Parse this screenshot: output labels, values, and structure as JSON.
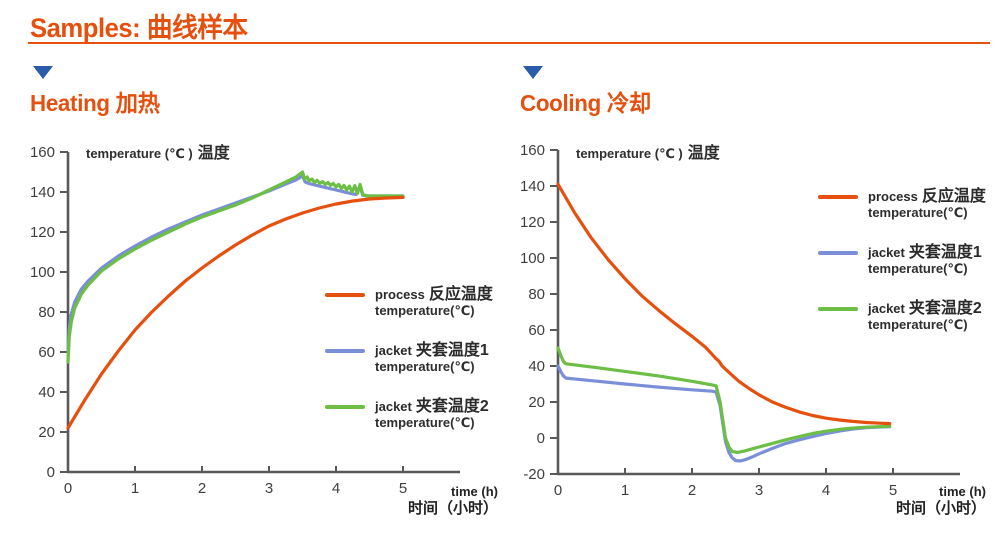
{
  "page": {
    "title": "Samples: 曲线样本",
    "accent_color": "#E5500F",
    "triangle_color": "#2A5CAA",
    "axis_color": "#595959",
    "tick_label_color": "#3F3F3F"
  },
  "sections": [
    {
      "heading": "Heating 加热"
    },
    {
      "heading": "Cooling 冷却"
    }
  ],
  "chart_data": [
    {
      "type": "line",
      "title": "Heating 加热",
      "ylabel_en": "temperature (℃ )",
      "ylabel_zh": "温度",
      "xlabel_en": "time (h)",
      "xlabel_zh": "时间（小时）",
      "xlim": [
        0,
        5.9
      ],
      "ylim": [
        0,
        160
      ],
      "xticks": [
        0,
        1,
        2,
        3,
        4,
        5
      ],
      "yticks": [
        0,
        20,
        40,
        60,
        80,
        100,
        120,
        140,
        160
      ],
      "grid": false,
      "legend_position": "right-middle",
      "series": [
        {
          "name_en": "process",
          "name_zh": "反应温度",
          "sub": "temperature(℃)",
          "color": "#E5500F",
          "points": [
            [
              0,
              22
            ],
            [
              0.25,
              36
            ],
            [
              0.5,
              49
            ],
            [
              0.75,
              60.5
            ],
            [
              1,
              71
            ],
            [
              1.25,
              80
            ],
            [
              1.5,
              88
            ],
            [
              1.75,
              95.5
            ],
            [
              2,
              102
            ],
            [
              2.25,
              108
            ],
            [
              2.5,
              113.5
            ],
            [
              2.75,
              118.5
            ],
            [
              3,
              123
            ],
            [
              3.25,
              126.5
            ],
            [
              3.5,
              129.5
            ],
            [
              3.75,
              132
            ],
            [
              4,
              134
            ],
            [
              4.25,
              135.5
            ],
            [
              4.5,
              136.5
            ],
            [
              4.75,
              137
            ],
            [
              5,
              137.3
            ]
          ]
        },
        {
          "name_en": "jacket",
          "name_zh": "夹套温度1",
          "sub": "temperature(℃)",
          "color": "#7B8FD9",
          "points": [
            [
              0,
              60
            ],
            [
              0.02,
              72
            ],
            [
              0.05,
              79
            ],
            [
              0.1,
              85
            ],
            [
              0.2,
              91.5
            ],
            [
              0.3,
              95.5
            ],
            [
              0.5,
              102
            ],
            [
              0.75,
              108
            ],
            [
              1,
              113
            ],
            [
              1.25,
              117.5
            ],
            [
              1.5,
              121.5
            ],
            [
              1.75,
              125
            ],
            [
              2,
              128.5
            ],
            [
              2.25,
              131.5
            ],
            [
              2.5,
              134.5
            ],
            [
              2.75,
              137.5
            ],
            [
              3,
              140.5
            ],
            [
              3.25,
              144
            ],
            [
              3.4,
              146
            ],
            [
              3.5,
              148
            ],
            [
              3.54,
              145
            ],
            [
              3.6,
              144.2
            ],
            [
              3.7,
              143.4
            ],
            [
              3.8,
              142.6
            ],
            [
              3.9,
              141.8
            ],
            [
              4,
              141
            ],
            [
              4.1,
              140.2
            ],
            [
              4.2,
              139.4
            ],
            [
              4.3,
              138.7
            ],
            [
              4.33,
              141.5
            ],
            [
              4.36,
              142.5
            ],
            [
              4.4,
              138.4
            ],
            [
              4.45,
              138.1
            ],
            [
              4.6,
              138
            ],
            [
              5,
              138
            ]
          ]
        },
        {
          "name_en": "jacket",
          "name_zh": "夹套温度2",
          "sub": "temperature(℃)",
          "color": "#6CBE45",
          "points": [
            [
              0,
              55
            ],
            [
              0.02,
              68
            ],
            [
              0.05,
              75
            ],
            [
              0.1,
              82
            ],
            [
              0.2,
              89
            ],
            [
              0.3,
              93.5
            ],
            [
              0.5,
              100.5
            ],
            [
              0.75,
              106.5
            ],
            [
              1,
              111.5
            ],
            [
              1.25,
              116
            ],
            [
              1.5,
              120
            ],
            [
              1.75,
              124
            ],
            [
              2,
              127.5
            ],
            [
              2.25,
              130.5
            ],
            [
              2.5,
              133.5
            ],
            [
              2.75,
              137
            ],
            [
              3,
              141
            ],
            [
              3.25,
              145
            ],
            [
              3.4,
              147.5
            ],
            [
              3.5,
              150
            ],
            [
              3.53,
              146.5
            ],
            [
              3.57,
              147.5
            ],
            [
              3.6,
              145.5
            ],
            [
              3.64,
              146.5
            ],
            [
              3.68,
              144.8
            ],
            [
              3.72,
              145.8
            ],
            [
              3.76,
              144.3
            ],
            [
              3.8,
              145.2
            ],
            [
              3.84,
              143.8
            ],
            [
              3.88,
              144.8
            ],
            [
              3.92,
              143.3
            ],
            [
              3.96,
              144.3
            ],
            [
              4,
              142.5
            ],
            [
              4.04,
              143.8
            ],
            [
              4.08,
              141.8
            ],
            [
              4.12,
              143.3
            ],
            [
              4.16,
              141
            ],
            [
              4.2,
              143
            ],
            [
              4.24,
              140
            ],
            [
              4.28,
              143.2
            ],
            [
              4.32,
              139.3
            ],
            [
              4.36,
              143.8
            ],
            [
              4.4,
              138.8
            ],
            [
              4.44,
              138.2
            ],
            [
              4.5,
              138
            ],
            [
              5,
              138
            ]
          ]
        }
      ]
    },
    {
      "type": "line",
      "title": "Cooling 冷却",
      "ylabel_en": "temperature (℃ )",
      "ylabel_zh": "温度",
      "xlabel_en": "time (h)",
      "xlabel_zh": "时间（小时）",
      "xlim": [
        0,
        6
      ],
      "ylim": [
        -20,
        160
      ],
      "xticks": [
        0,
        1,
        2,
        3,
        4,
        5
      ],
      "yticks": [
        -20,
        0,
        20,
        40,
        60,
        80,
        100,
        120,
        140,
        160
      ],
      "grid": false,
      "legend_position": "right-upper",
      "series": [
        {
          "name_en": "process",
          "name_zh": "反应温度",
          "sub": "temperature(℃)",
          "color": "#E5500F",
          "points": [
            [
              0,
              141
            ],
            [
              0.25,
              125
            ],
            [
              0.5,
              111
            ],
            [
              0.75,
              99
            ],
            [
              1,
              88.5
            ],
            [
              1.25,
              79
            ],
            [
              1.5,
              71
            ],
            [
              1.75,
              63.5
            ],
            [
              2,
              56.5
            ],
            [
              2.1,
              53.5
            ],
            [
              2.2,
              50.5
            ],
            [
              2.3,
              46.5
            ],
            [
              2.36,
              44
            ],
            [
              2.4,
              42.8
            ],
            [
              2.45,
              40
            ],
            [
              2.55,
              36.5
            ],
            [
              2.7,
              31.5
            ],
            [
              2.85,
              27.5
            ],
            [
              3,
              24
            ],
            [
              3.2,
              20
            ],
            [
              3.4,
              17
            ],
            [
              3.6,
              14.5
            ],
            [
              3.8,
              12.5
            ],
            [
              4,
              11
            ],
            [
              4.2,
              10
            ],
            [
              4.4,
              9.2
            ],
            [
              4.6,
              8.6
            ],
            [
              4.8,
              8.2
            ],
            [
              4.95,
              8
            ]
          ]
        },
        {
          "name_en": "jacket",
          "name_zh": "夹套温度1",
          "sub": "temperature(℃)",
          "color": "#7B8FD9",
          "points": [
            [
              0,
              40
            ],
            [
              0.04,
              37
            ],
            [
              0.08,
              34.5
            ],
            [
              0.12,
              33.3
            ],
            [
              0.3,
              32.6
            ],
            [
              0.6,
              31.5
            ],
            [
              1,
              30
            ],
            [
              1.5,
              28.3
            ],
            [
              2,
              26.8
            ],
            [
              2.3,
              26
            ],
            [
              2.36,
              25.5
            ],
            [
              2.42,
              18
            ],
            [
              2.46,
              8
            ],
            [
              2.5,
              -2
            ],
            [
              2.55,
              -8
            ],
            [
              2.6,
              -11
            ],
            [
              2.65,
              -12.5
            ],
            [
              2.72,
              -12.8
            ],
            [
              2.8,
              -12
            ],
            [
              2.9,
              -10.5
            ],
            [
              3,
              -8.8
            ],
            [
              3.2,
              -5.8
            ],
            [
              3.4,
              -3
            ],
            [
              3.6,
              -1
            ],
            [
              3.8,
              0.8
            ],
            [
              4,
              2.5
            ],
            [
              4.2,
              3.9
            ],
            [
              4.4,
              5
            ],
            [
              4.6,
              5.7
            ],
            [
              4.8,
              6.1
            ],
            [
              4.95,
              6.3
            ]
          ]
        },
        {
          "name_en": "jacket",
          "name_zh": "夹套温度2",
          "sub": "temperature(℃)",
          "color": "#6CBE45",
          "points": [
            [
              0,
              50
            ],
            [
              0.04,
              46
            ],
            [
              0.08,
              42.5
            ],
            [
              0.12,
              41.2
            ],
            [
              0.3,
              40.4
            ],
            [
              0.6,
              39
            ],
            [
              1,
              37
            ],
            [
              1.5,
              34.5
            ],
            [
              2,
              31.5
            ],
            [
              2.3,
              29.5
            ],
            [
              2.36,
              29
            ],
            [
              2.42,
              20
            ],
            [
              2.46,
              10
            ],
            [
              2.5,
              0
            ],
            [
              2.55,
              -5
            ],
            [
              2.6,
              -7.5
            ],
            [
              2.68,
              -8
            ],
            [
              2.78,
              -7.3
            ],
            [
              2.9,
              -6
            ],
            [
              3,
              -5
            ],
            [
              3.2,
              -3
            ],
            [
              3.4,
              -1
            ],
            [
              3.6,
              0.8
            ],
            [
              3.8,
              2.5
            ],
            [
              4,
              3.8
            ],
            [
              4.2,
              4.8
            ],
            [
              4.4,
              5.5
            ],
            [
              4.6,
              6
            ],
            [
              4.8,
              6.3
            ],
            [
              4.95,
              6.5
            ]
          ]
        }
      ]
    }
  ]
}
